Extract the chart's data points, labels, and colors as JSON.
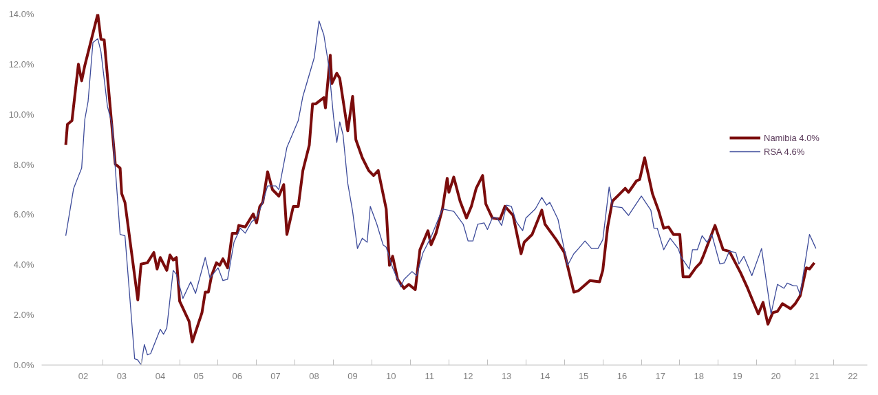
{
  "chart_data": {
    "type": "line",
    "xlim": [
      "2001-06-01",
      "2022-11-16"
    ],
    "ylim": [
      0,
      14
    ],
    "xticks": [
      {
        "value": "2002-07-01",
        "label": "02"
      },
      {
        "value": "2003-01-01",
        "label": null
      },
      {
        "value": "2003-07-01",
        "label": "03"
      },
      {
        "value": "2004-01-01",
        "label": null
      },
      {
        "value": "2004-07-01",
        "label": "04"
      },
      {
        "value": "2005-01-01",
        "label": null
      },
      {
        "value": "2005-07-01",
        "label": "05"
      },
      {
        "value": "2006-01-01",
        "label": null
      },
      {
        "value": "2006-07-01",
        "label": "06"
      },
      {
        "value": "2007-01-01",
        "label": null
      },
      {
        "value": "2007-07-01",
        "label": "07"
      },
      {
        "value": "2008-01-01",
        "label": null
      },
      {
        "value": "2008-07-01",
        "label": "08"
      },
      {
        "value": "2009-01-01",
        "label": null
      },
      {
        "value": "2009-07-01",
        "label": "09"
      },
      {
        "value": "2010-01-01",
        "label": null
      },
      {
        "value": "2010-07-01",
        "label": "10"
      },
      {
        "value": "2011-01-01",
        "label": null
      },
      {
        "value": "2011-07-01",
        "label": "11"
      },
      {
        "value": "2012-01-01",
        "label": null
      },
      {
        "value": "2012-07-01",
        "label": "12"
      },
      {
        "value": "2013-01-01",
        "label": null
      },
      {
        "value": "2013-07-01",
        "label": "13"
      },
      {
        "value": "2014-01-01",
        "label": null
      },
      {
        "value": "2014-07-01",
        "label": "14"
      },
      {
        "value": "2015-01-01",
        "label": null
      },
      {
        "value": "2015-07-01",
        "label": "15"
      },
      {
        "value": "2016-01-01",
        "label": null
      },
      {
        "value": "2016-07-01",
        "label": "16"
      },
      {
        "value": "2017-01-01",
        "label": null
      },
      {
        "value": "2017-07-01",
        "label": "17"
      },
      {
        "value": "2018-01-01",
        "label": null
      },
      {
        "value": "2018-07-01",
        "label": "18"
      },
      {
        "value": "2019-01-01",
        "label": null
      },
      {
        "value": "2019-07-01",
        "label": "19"
      },
      {
        "value": "2020-01-01",
        "label": null
      },
      {
        "value": "2020-07-01",
        "label": "20"
      },
      {
        "value": "2021-01-01",
        "label": null
      },
      {
        "value": "2021-07-01",
        "label": "21"
      },
      {
        "value": "2022-01-01",
        "label": null
      },
      {
        "value": "2022-07-01",
        "label": "22"
      }
    ],
    "yticks": [
      {
        "value": 0,
        "label": "0.0%"
      },
      {
        "value": 2,
        "label": "2.0%"
      },
      {
        "value": 4,
        "label": "4.0%"
      },
      {
        "value": 6,
        "label": "6.0%"
      },
      {
        "value": 8,
        "label": "8.0%"
      },
      {
        "value": 10,
        "label": "10.0%"
      },
      {
        "value": 12,
        "label": "12.0%"
      },
      {
        "value": 14,
        "label": "14.0%"
      }
    ],
    "grid": false,
    "legend": "right",
    "series": [
      {
        "name": "Namibia 4.0%",
        "color": "#7b0c0c",
        "x": [
          "2002-01-16",
          "2002-02-01",
          "2002-03-16",
          "2002-05-16",
          "2002-06-16",
          "2002-07-16",
          "2002-11-16",
          "2002-12-16",
          "2003-01-16",
          "2003-05-01",
          "2003-06-16",
          "2003-07-01",
          "2003-08-01",
          "2003-12-01",
          "2004-01-01",
          "2004-03-01",
          "2004-05-01",
          "2004-06-01",
          "2004-07-01",
          "2004-09-01",
          "2004-10-01",
          "2004-11-01",
          "2004-12-01",
          "2005-01-01",
          "2005-04-01",
          "2005-05-01",
          "2005-08-01",
          "2005-09-01",
          "2005-10-01",
          "2005-11-01",
          "2005-12-16",
          "2006-01-16",
          "2006-02-16",
          "2006-04-01",
          "2006-05-16",
          "2006-07-01",
          "2006-07-16",
          "2006-09-16",
          "2006-12-01",
          "2007-01-01",
          "2007-02-01",
          "2007-03-01",
          "2007-04-16",
          "2007-06-01",
          "2007-08-01",
          "2007-09-16",
          "2007-10-16",
          "2007-12-16",
          "2008-02-01",
          "2008-03-16",
          "2008-05-16",
          "2008-06-16",
          "2008-07-16",
          "2008-10-01",
          "2008-10-16",
          "2008-12-01",
          "2008-12-16",
          "2009-02-01",
          "2009-03-01",
          "2009-05-16",
          "2009-07-01",
          "2009-08-01",
          "2009-10-01",
          "2009-12-01",
          "2010-01-16",
          "2010-03-01",
          "2010-05-16",
          "2010-06-16",
          "2010-07-16",
          "2010-09-01",
          "2010-11-01",
          "2010-12-16",
          "2011-02-16",
          "2011-04-01",
          "2011-06-16",
          "2011-07-16",
          "2011-09-01",
          "2011-11-01",
          "2011-12-16",
          "2012-01-01",
          "2012-02-16",
          "2012-04-16",
          "2012-06-16",
          "2012-08-01",
          "2012-09-16",
          "2012-11-16",
          "2012-12-16",
          "2013-02-16",
          "2013-05-01",
          "2013-06-16",
          "2013-09-01",
          "2013-11-16",
          "2013-12-16",
          "2014-03-01",
          "2014-06-01",
          "2014-07-01",
          "2014-10-16",
          "2015-01-01",
          "2015-04-01",
          "2015-05-16",
          "2015-09-01",
          "2015-12-01",
          "2016-01-01",
          "2016-02-16",
          "2016-04-01",
          "2016-06-01",
          "2016-08-01",
          "2016-09-01",
          "2016-11-16",
          "2016-12-16",
          "2017-02-01",
          "2017-04-16",
          "2017-06-16",
          "2017-08-01",
          "2017-09-16",
          "2017-11-01",
          "2018-01-01",
          "2018-02-01",
          "2018-04-01",
          "2018-06-01",
          "2018-07-16",
          "2018-08-16",
          "2018-12-01",
          "2019-02-16",
          "2019-04-16",
          "2019-08-01",
          "2019-10-01",
          "2019-12-01",
          "2020-01-16",
          "2020-03-01",
          "2020-04-16",
          "2020-06-01",
          "2020-07-16",
          "2020-09-01",
          "2020-11-16",
          "2021-01-01",
          "2021-02-16",
          "2021-04-16",
          "2021-05-16",
          "2021-07-01"
        ],
        "values": [
          8.78,
          9.6,
          9.75,
          12.0,
          11.34,
          11.95,
          14.0,
          13.0,
          12.97,
          8.02,
          7.86,
          6.84,
          6.49,
          2.6,
          4.03,
          4.08,
          4.49,
          3.83,
          4.29,
          3.78,
          4.39,
          4.19,
          4.29,
          2.55,
          1.74,
          0.92,
          2.09,
          2.91,
          2.91,
          3.58,
          4.08,
          3.98,
          4.24,
          3.88,
          5.26,
          5.26,
          5.57,
          5.51,
          6.03,
          5.67,
          6.33,
          6.49,
          7.71,
          7.0,
          6.74,
          7.2,
          5.21,
          6.33,
          6.33,
          7.76,
          8.78,
          10.42,
          10.42,
          10.67,
          10.26,
          12.36,
          11.23,
          11.64,
          11.44,
          9.34,
          10.72,
          8.99,
          8.27,
          7.76,
          7.56,
          7.76,
          6.23,
          3.98,
          4.34,
          3.42,
          3.06,
          3.22,
          3.01,
          4.6,
          5.36,
          4.8,
          5.26,
          6.23,
          7.45,
          6.89,
          7.5,
          6.54,
          5.87,
          6.33,
          7.05,
          7.56,
          6.43,
          5.87,
          5.82,
          6.33,
          5.97,
          4.44,
          4.9,
          5.21,
          6.18,
          5.62,
          5.0,
          4.49,
          2.91,
          2.97,
          3.37,
          3.32,
          3.78,
          5.51,
          6.54,
          6.79,
          7.05,
          6.89,
          7.35,
          7.4,
          8.27,
          6.84,
          6.13,
          5.46,
          5.51,
          5.21,
          5.21,
          3.52,
          3.52,
          3.88,
          4.08,
          4.39,
          5.57,
          4.6,
          4.54,
          3.68,
          3.12,
          2.5,
          2.04,
          2.5,
          1.63,
          2.09,
          2.14,
          2.45,
          2.25,
          2.45,
          2.76,
          3.88,
          3.83,
          4.08
        ]
      },
      {
        "name": "RSA 4.6%",
        "color": "#3d4b9a",
        "x": [
          "2002-01-16",
          "2002-04-01",
          "2002-06-16",
          "2002-07-16",
          "2002-08-16",
          "2002-10-01",
          "2002-11-16",
          "2002-12-16",
          "2003-02-16",
          "2003-04-01",
          "2003-06-16",
          "2003-08-01",
          "2003-11-01",
          "2003-12-01",
          "2004-01-01",
          "2004-02-01",
          "2004-03-01",
          "2004-04-01",
          "2004-07-01",
          "2004-08-01",
          "2004-09-01",
          "2004-11-01",
          "2004-12-01",
          "2005-02-01",
          "2005-04-16",
          "2005-06-01",
          "2005-09-01",
          "2005-10-16",
          "2006-01-01",
          "2006-02-16",
          "2006-04-01",
          "2006-06-01",
          "2006-08-01",
          "2006-09-16",
          "2006-11-16",
          "2007-01-01",
          "2007-03-01",
          "2007-04-16",
          "2007-07-01",
          "2007-08-01",
          "2007-10-16",
          "2008-02-01",
          "2008-03-16",
          "2008-07-01",
          "2008-08-16",
          "2008-10-01",
          "2008-11-16",
          "2009-01-01",
          "2009-02-01",
          "2009-03-01",
          "2009-04-01",
          "2009-05-16",
          "2009-07-01",
          "2009-08-16",
          "2009-10-01",
          "2009-11-16",
          "2009-12-16",
          "2010-02-16",
          "2010-04-16",
          "2010-05-16",
          "2010-07-16",
          "2010-10-01",
          "2010-11-01",
          "2011-01-16",
          "2011-03-01",
          "2011-05-01",
          "2011-07-16",
          "2011-11-01",
          "2012-02-16",
          "2012-05-16",
          "2012-07-01",
          "2012-08-16",
          "2012-10-01",
          "2012-12-01",
          "2013-01-01",
          "2013-02-16",
          "2013-04-01",
          "2013-05-16",
          "2013-07-01",
          "2013-08-16",
          "2013-10-01",
          "2013-12-01",
          "2014-01-01",
          "2014-04-01",
          "2014-06-01",
          "2014-07-16",
          "2014-08-16",
          "2014-11-01",
          "2015-02-01",
          "2015-04-01",
          "2015-05-16",
          "2015-07-16",
          "2015-09-16",
          "2015-11-16",
          "2016-01-01",
          "2016-03-01",
          "2016-04-01",
          "2016-07-01",
          "2016-09-01",
          "2017-01-01",
          "2017-04-01",
          "2017-05-01",
          "2017-06-01",
          "2017-08-01",
          "2017-10-01",
          "2017-12-16",
          "2018-01-16",
          "2018-04-01",
          "2018-05-01",
          "2018-06-16",
          "2018-08-01",
          "2018-09-16",
          "2018-11-01",
          "2019-01-16",
          "2019-03-01",
          "2019-04-16",
          "2019-06-16",
          "2019-07-16",
          "2019-09-01",
          "2019-11-16",
          "2020-02-16",
          "2020-05-16",
          "2020-07-16",
          "2020-09-16",
          "2020-10-16",
          "2020-12-16",
          "2021-01-16",
          "2021-02-16",
          "2021-05-16",
          "2021-07-16"
        ],
        "values": [
          5.16,
          7.05,
          7.86,
          9.8,
          10.52,
          12.87,
          13.02,
          12.5,
          10.31,
          9.6,
          5.21,
          5.16,
          0.25,
          0.2,
          0.0,
          0.82,
          0.41,
          0.46,
          1.43,
          1.23,
          1.48,
          3.78,
          3.62,
          2.66,
          3.32,
          2.86,
          4.29,
          3.47,
          3.88,
          3.37,
          3.42,
          4.9,
          5.46,
          5.26,
          5.72,
          5.87,
          6.49,
          7.15,
          7.15,
          7.0,
          8.68,
          9.75,
          10.72,
          12.25,
          13.73,
          13.17,
          11.95,
          9.9,
          8.88,
          9.7,
          9.19,
          7.25,
          6.13,
          4.65,
          5.06,
          4.9,
          6.33,
          5.62,
          4.8,
          4.7,
          3.88,
          3.12,
          3.42,
          3.73,
          3.57,
          4.49,
          5.11,
          6.23,
          6.13,
          5.62,
          4.95,
          4.95,
          5.62,
          5.67,
          5.41,
          5.87,
          5.87,
          5.57,
          6.38,
          6.33,
          5.72,
          5.36,
          5.87,
          6.23,
          6.69,
          6.38,
          6.49,
          5.82,
          3.98,
          4.44,
          4.65,
          4.95,
          4.65,
          4.65,
          5.0,
          7.1,
          6.33,
          6.28,
          5.97,
          6.74,
          6.18,
          5.46,
          5.46,
          4.6,
          5.06,
          4.65,
          4.29,
          3.83,
          4.6,
          4.6,
          5.16,
          4.9,
          5.21,
          4.03,
          4.08,
          4.54,
          4.49,
          4.03,
          4.34,
          3.57,
          4.65,
          2.04,
          3.22,
          3.06,
          3.27,
          3.16,
          3.16,
          2.81,
          5.21,
          4.65
        ]
      }
    ]
  }
}
